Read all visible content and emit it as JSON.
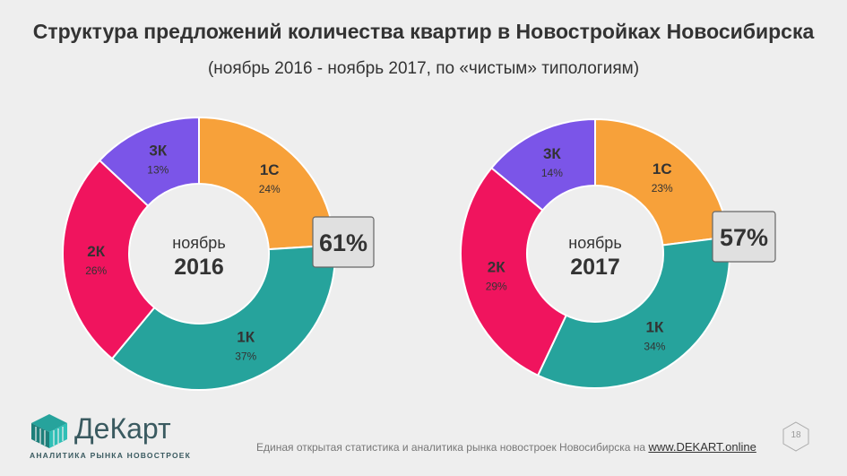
{
  "title": "Структура предложений количества квартир в Новостройках Новосибирска",
  "subtitle": "(ноябрь 2016 - ноябрь 2017, по «чистым» типологиям)",
  "chart_data": [
    {
      "type": "pie",
      "center_label": "ноябрь",
      "center_value": "2016",
      "callout": "61%",
      "slices": [
        {
          "label": "1С",
          "value": 24,
          "text": "24%",
          "color": "#f7a13a"
        },
        {
          "label": "1К",
          "value": 37,
          "text": "37%",
          "color": "#26a39c"
        },
        {
          "label": "2К",
          "value": 26,
          "text": "26%",
          "color": "#f0145e"
        },
        {
          "label": "3К",
          "value": 13,
          "text": "13%",
          "color": "#7b55e8"
        }
      ]
    },
    {
      "type": "pie",
      "center_label": "ноябрь",
      "center_value": "2017",
      "callout": "57%",
      "slices": [
        {
          "label": "1С",
          "value": 23,
          "text": "23%",
          "color": "#f7a13a"
        },
        {
          "label": "1К",
          "value": 34,
          "text": "34%",
          "color": "#26a39c"
        },
        {
          "label": "2К",
          "value": 29,
          "text": "29%",
          "color": "#f0145e"
        },
        {
          "label": "3К",
          "value": 14,
          "text": "14%",
          "color": "#7b55e8"
        }
      ]
    }
  ],
  "footer": {
    "text": "Единая открытая статистика и аналитика рынка новостроек Новосибирска на",
    "link": "www.DEKART.online"
  },
  "logo": {
    "name": "ДеКарт",
    "tagline": "АНАЛИТИКА РЫНКА НОВОСТРОЕК"
  },
  "page_number": "18",
  "colors": {
    "text": "#333333",
    "callout_bg": "#e0e0e0",
    "callout_border": "#666666"
  }
}
